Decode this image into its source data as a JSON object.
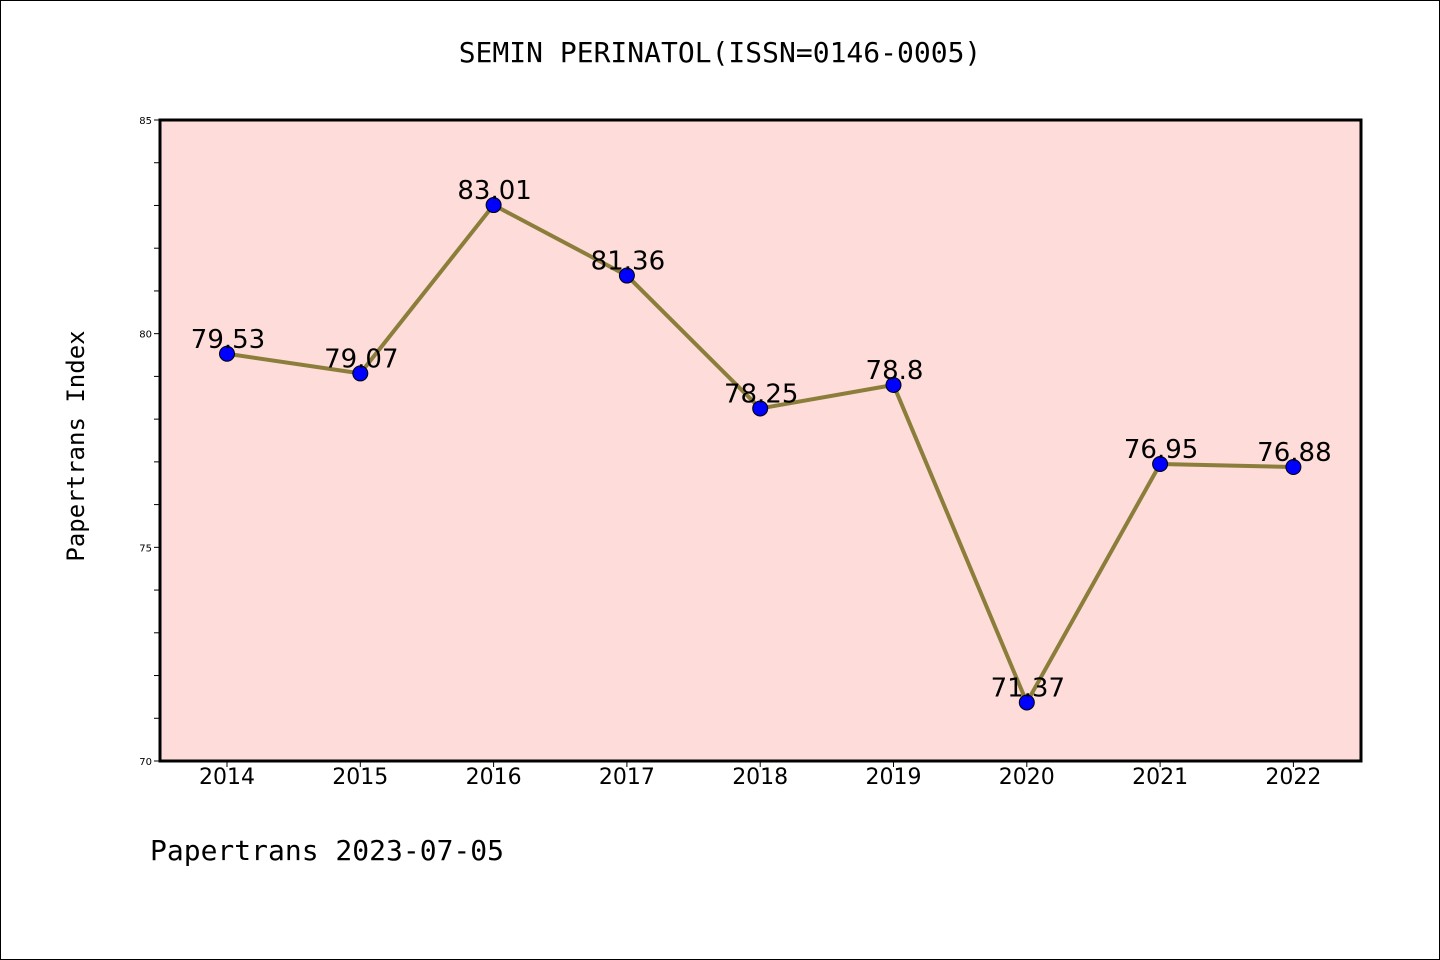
{
  "chart_data": {
    "type": "line",
    "title": "SEMIN PERINATOL(ISSN=0146-0005)",
    "xlabel": "",
    "ylabel": "Papertrans Index",
    "categories": [
      "2014",
      "2015",
      "2016",
      "2017",
      "2018",
      "2019",
      "2020",
      "2021",
      "2022"
    ],
    "series": [
      {
        "values": [
          79.53,
          79.07,
          83.01,
          81.36,
          78.25,
          78.8,
          71.37,
          76.95,
          76.88
        ]
      }
    ],
    "data_labels": [
      "79.53",
      "79.07",
      "83.01",
      "81.36",
      "78.25",
      "78.8",
      "71.37",
      "76.95",
      "76.88"
    ],
    "ylim": [
      70,
      85
    ],
    "yticks": [
      "70",
      "75",
      "80",
      "85"
    ],
    "grid": false,
    "legend": "none",
    "colors": {
      "plot_background": "#fddcd9",
      "line": "#8b7d3a",
      "marker": "#0000ff"
    }
  },
  "footer": "Papertrans 2023-07-05"
}
